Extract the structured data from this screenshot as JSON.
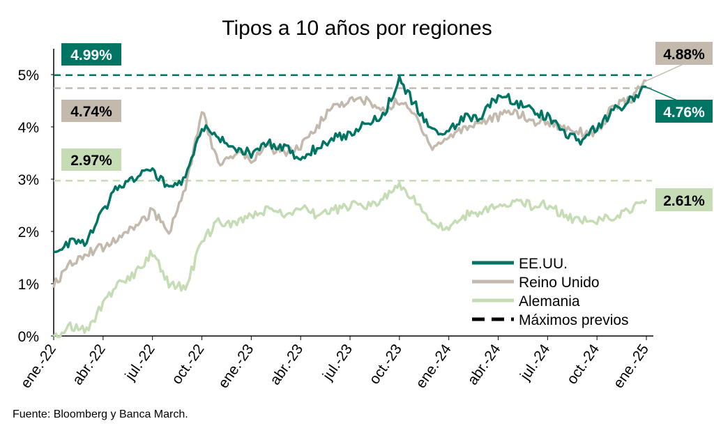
{
  "chart_data": {
    "type": "line",
    "title": "Tipos a 10 años por regiones",
    "source": "Fuente: Bloomberg y Banca March.",
    "xlabel": "",
    "ylabel": "",
    "ylim": [
      0,
      5.5
    ],
    "y_ticks": [
      {
        "v": 0,
        "label": "0%"
      },
      {
        "v": 1,
        "label": "1%"
      },
      {
        "v": 2,
        "label": "2%"
      },
      {
        "v": 3,
        "label": "3%"
      },
      {
        "v": 4,
        "label": "4%"
      },
      {
        "v": 5,
        "label": "5%"
      }
    ],
    "x_ticks": [
      "ene.-22",
      "abr.-22",
      "jul.-22",
      "oct.-22",
      "ene.-23",
      "abr.-23",
      "jul.-23",
      "oct.-23",
      "ene.-24",
      "abr.-24",
      "jul.-24",
      "oct.-24",
      "ene.-25"
    ],
    "x_unit": "monthly, ene.-22 to ene.-25",
    "series": [
      {
        "name": "EE.UU.",
        "color": "#007563",
        "values": [
          1.6,
          1.8,
          1.8,
          2.4,
          2.9,
          3.0,
          3.2,
          2.8,
          3.0,
          4.0,
          3.8,
          3.6,
          3.5,
          3.7,
          3.6,
          3.4,
          3.6,
          3.8,
          3.85,
          4.1,
          4.2,
          4.9,
          4.4,
          3.9,
          3.9,
          4.2,
          4.2,
          4.6,
          4.5,
          4.3,
          4.2,
          3.9,
          3.7,
          4.0,
          4.3,
          4.5,
          4.76
        ]
      },
      {
        "name": "Reino Unido",
        "color": "#c3b9ad",
        "values": [
          0.97,
          1.4,
          1.6,
          1.7,
          1.9,
          2.1,
          2.4,
          2.0,
          2.8,
          4.3,
          3.3,
          3.5,
          3.4,
          3.6,
          3.5,
          3.6,
          4.0,
          4.4,
          4.5,
          4.5,
          4.3,
          4.5,
          4.2,
          3.6,
          3.8,
          4.0,
          4.1,
          4.2,
          4.3,
          4.1,
          4.1,
          4.0,
          3.9,
          3.9,
          4.4,
          4.5,
          4.88
        ]
      },
      {
        "name": "Alemania",
        "color": "#c5dcb5",
        "values": [
          -0.05,
          0.2,
          0.1,
          0.6,
          1.0,
          1.2,
          1.6,
          1.0,
          0.9,
          1.8,
          2.2,
          2.1,
          2.3,
          2.4,
          2.3,
          2.5,
          2.3,
          2.4,
          2.5,
          2.5,
          2.6,
          2.9,
          2.6,
          2.1,
          2.1,
          2.3,
          2.4,
          2.5,
          2.6,
          2.5,
          2.5,
          2.3,
          2.2,
          2.2,
          2.3,
          2.4,
          2.61
        ]
      }
    ],
    "previous_max": [
      {
        "series": "EE.UU.",
        "value": 4.99,
        "label": "4.99%",
        "color": "#007563"
      },
      {
        "series": "Reino Unido",
        "value": 4.74,
        "label": "4.74%",
        "color": "#c3b9ad"
      },
      {
        "series": "Alemania",
        "value": 2.97,
        "label": "2.97%",
        "color": "#c5dcb5"
      }
    ],
    "last_values": [
      {
        "series": "Reino Unido",
        "label": "4.88%",
        "color": "#c3b9ad",
        "text_color": "#000000"
      },
      {
        "series": "EE.UU.",
        "label": "4.76%",
        "color": "#007563",
        "text_color": "#ffffff"
      },
      {
        "series": "Alemania",
        "label": "2.61%",
        "color": "#c5dcb5",
        "text_color": "#000000"
      }
    ],
    "legend": {
      "placement": "bottom-right",
      "entries": [
        "EE.UU.",
        "Reino Unido",
        "Alemania",
        "Máximos previos"
      ]
    }
  }
}
